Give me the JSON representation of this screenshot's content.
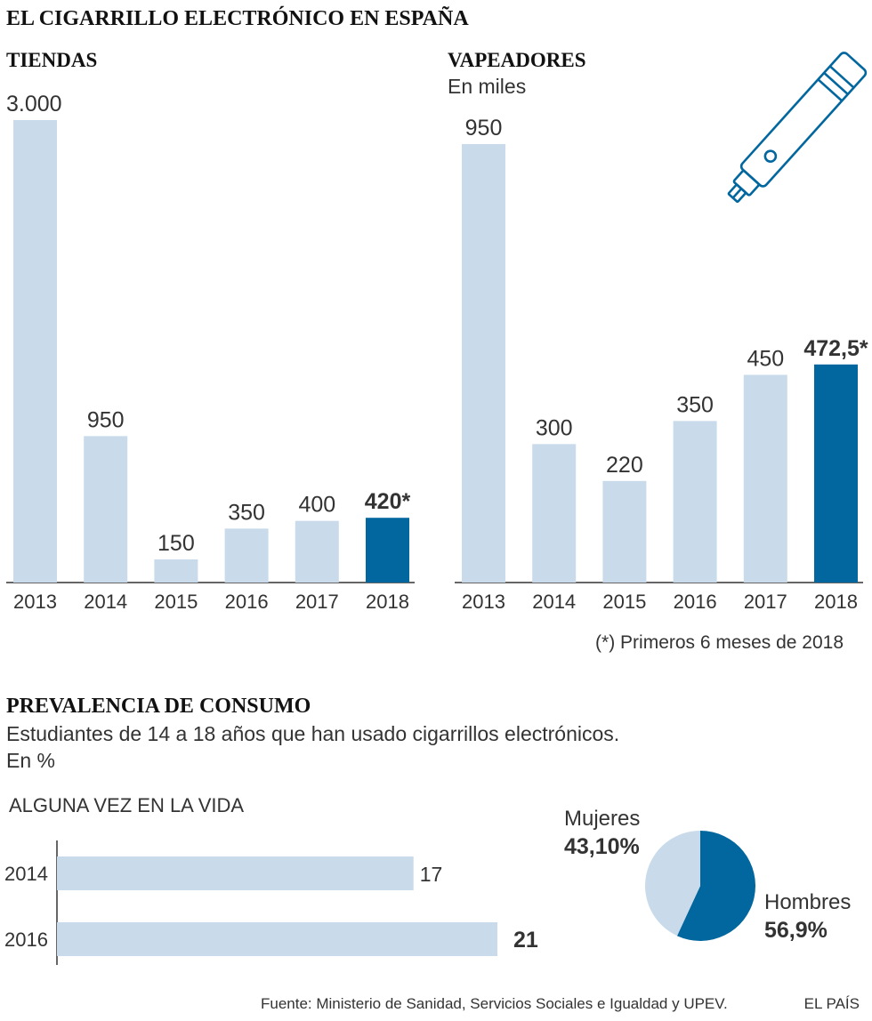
{
  "header": {
    "title": "EL CIGARRILLO ELECTRÓNICO EN ESPAÑA"
  },
  "colors": {
    "light_bar": "#c9dbeb",
    "highlight_bar": "#02679e",
    "axis": "#333333",
    "icon": "#02679e"
  },
  "chart_data": [
    {
      "type": "bar",
      "title": "TIENDAS",
      "categories": [
        "2013",
        "2014",
        "2015",
        "2016",
        "2017",
        "2018"
      ],
      "values": [
        3000,
        950,
        150,
        350,
        400,
        420
      ],
      "value_labels": [
        "3.000",
        "950",
        "150",
        "350",
        "400",
        "420*"
      ],
      "highlight_index": 5
    },
    {
      "type": "bar",
      "title": "VAPEADORES",
      "subtitle": "En miles",
      "categories": [
        "2013",
        "2014",
        "2015",
        "2016",
        "2017",
        "2018"
      ],
      "values": [
        950,
        300,
        220,
        350,
        450,
        472.5
      ],
      "value_labels": [
        "950",
        "300",
        "220",
        "350",
        "450",
        "472,5*"
      ],
      "highlight_index": 5,
      "footnote": "(*) Primeros 6 meses de 2018"
    },
    {
      "type": "bar",
      "orientation": "horizontal",
      "title": "ALGUNA VEZ EN LA VIDA",
      "categories": [
        "2014",
        "2016"
      ],
      "values": [
        17,
        21
      ],
      "value_labels": [
        "17",
        "21"
      ]
    },
    {
      "type": "pie",
      "slices": [
        {
          "name": "Hombres",
          "value": 56.9,
          "label": "56,9%"
        },
        {
          "name": "Mujeres",
          "value": 43.1,
          "label": "43,10%"
        }
      ]
    }
  ],
  "prevalence": {
    "title": "PREVALENCIA DE CONSUMO",
    "subtitle": "Estudiantes de 14 a 18 años que han usado cigarrillos electrónicos.",
    "unit": "En %"
  },
  "footer": {
    "source": "Fuente: Ministerio de Sanidad, Servicios Sociales e Igualdad y UPEV.",
    "brand": "EL PAÍS"
  }
}
